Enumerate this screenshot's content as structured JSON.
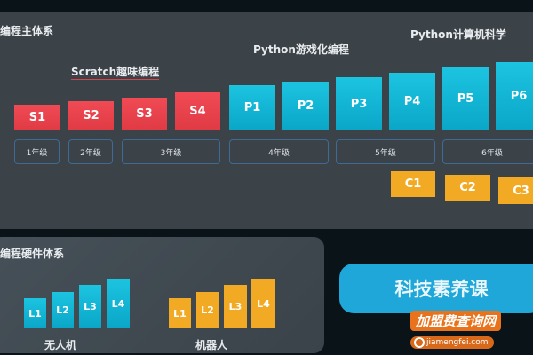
{
  "main_system": {
    "title": "编程主体系",
    "tracks": {
      "scratch": "Scratch趣味编程",
      "python_game": "Python游戏化编程",
      "python_cs": "Python计算机科学"
    },
    "scratch_levels": [
      "S1",
      "S2",
      "S3",
      "S4"
    ],
    "python_levels": [
      "P1",
      "P2",
      "P3",
      "P4",
      "P5",
      "P6"
    ],
    "cs_levels": [
      "C1",
      "C2",
      "C3"
    ],
    "grades": [
      "1年级",
      "2年级",
      "3年级",
      "4年级",
      "5年级",
      "6年级"
    ]
  },
  "hardware_system": {
    "title": "编程硬件体系",
    "groups": [
      {
        "label": "无人机",
        "levels": [
          "L1",
          "L2",
          "L3",
          "L4"
        ]
      },
      {
        "label": "机器人",
        "levels": [
          "L1",
          "L2",
          "L3",
          "L4"
        ]
      }
    ]
  },
  "tech_course_button": "科技素养课",
  "watermark": {
    "brand": "加盟费查询网",
    "url": "jiamengfei.com"
  },
  "colors": {
    "scratch": "#e8424d",
    "python": "#12b6d6",
    "cs": "#f2aa25",
    "drone": "#12b6d6",
    "robot": "#f2aa25"
  }
}
